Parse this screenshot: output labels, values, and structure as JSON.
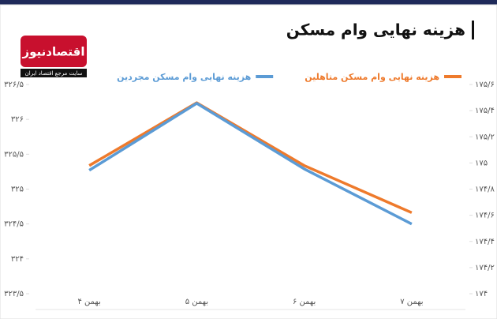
{
  "chart_data": {
    "type": "line",
    "title": "هزینه نهایی وام مسکن",
    "categories": [
      "۴ بهمن",
      "۵ بهمن",
      "۶ بهمن",
      "۷ بهمن"
    ],
    "series": [
      {
        "name": "هزینه نهایی وام مسکن متاهلین",
        "color": "#ee7a2c",
        "axis": "y2",
        "values": [
          174.98,
          175.46,
          174.98,
          174.62
        ]
      },
      {
        "name": "هزینه نهایی وام مسکن مجردین",
        "color": "#5b9bd5",
        "values": [
          325.27,
          326.23,
          325.29,
          324.5
        ]
      }
    ],
    "ylim": [
      323.5,
      326.5
    ],
    "yticks": [
      {
        "value": 323.5,
        "label": "۳۲۳/۵"
      },
      {
        "value": 324,
        "label": "۳۲۴"
      },
      {
        "value": 324.5,
        "label": "۳۲۴/۵"
      },
      {
        "value": 325,
        "label": "۳۲۵"
      },
      {
        "value": 325.5,
        "label": "۳۲۵/۵"
      },
      {
        "value": 326,
        "label": "۳۲۶"
      },
      {
        "value": 326.5,
        "label": "۳۲۶/۵"
      }
    ],
    "y2lim": [
      174,
      175.6
    ],
    "y2ticks": [
      {
        "value": 174,
        "label": "۱۷۴"
      },
      {
        "value": 174.2,
        "label": "۱۷۴/۲"
      },
      {
        "value": 174.4,
        "label": "۱۷۴/۴"
      },
      {
        "value": 174.6,
        "label": "۱۷۴/۶"
      },
      {
        "value": 174.8,
        "label": "۱۷۴/۸"
      },
      {
        "value": 175,
        "label": "۱۷۵"
      },
      {
        "value": 175.2,
        "label": "۱۷۵/۲"
      },
      {
        "value": 175.4,
        "label": "۱۷۵/۴"
      },
      {
        "value": 175.6,
        "label": "۱۷۵/۶"
      }
    ],
    "legend": "top",
    "grid": false
  },
  "logo": {
    "name": "اقتصادنیوز",
    "tagline": "سایت مرجع اقتصاد ایران"
  }
}
